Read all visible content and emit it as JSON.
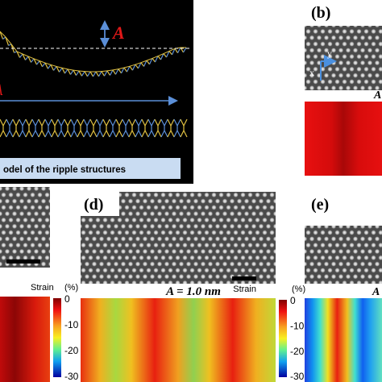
{
  "panel_a": {
    "amplitude_label": "A",
    "wavelength_label": "λ",
    "caption": "odel of the ripple structures"
  },
  "panel_b": {
    "label": "(b)",
    "axis_y": "y",
    "axis_x": "x",
    "strain_title": "A"
  },
  "panel_c": {
    "colorbar": {
      "title": "Strain",
      "unit": "(%)",
      "ticks": [
        "0",
        "-10",
        "-20",
        "-30"
      ]
    }
  },
  "panel_d": {
    "label": "(d)",
    "strain_title": "A = 1.0 nm",
    "colorbar": {
      "title": "Strain",
      "unit": "(%)",
      "ticks": [
        "0",
        "-10",
        "-20",
        "-30"
      ]
    }
  },
  "panel_e": {
    "label": "(e)",
    "strain_title": "A"
  }
}
